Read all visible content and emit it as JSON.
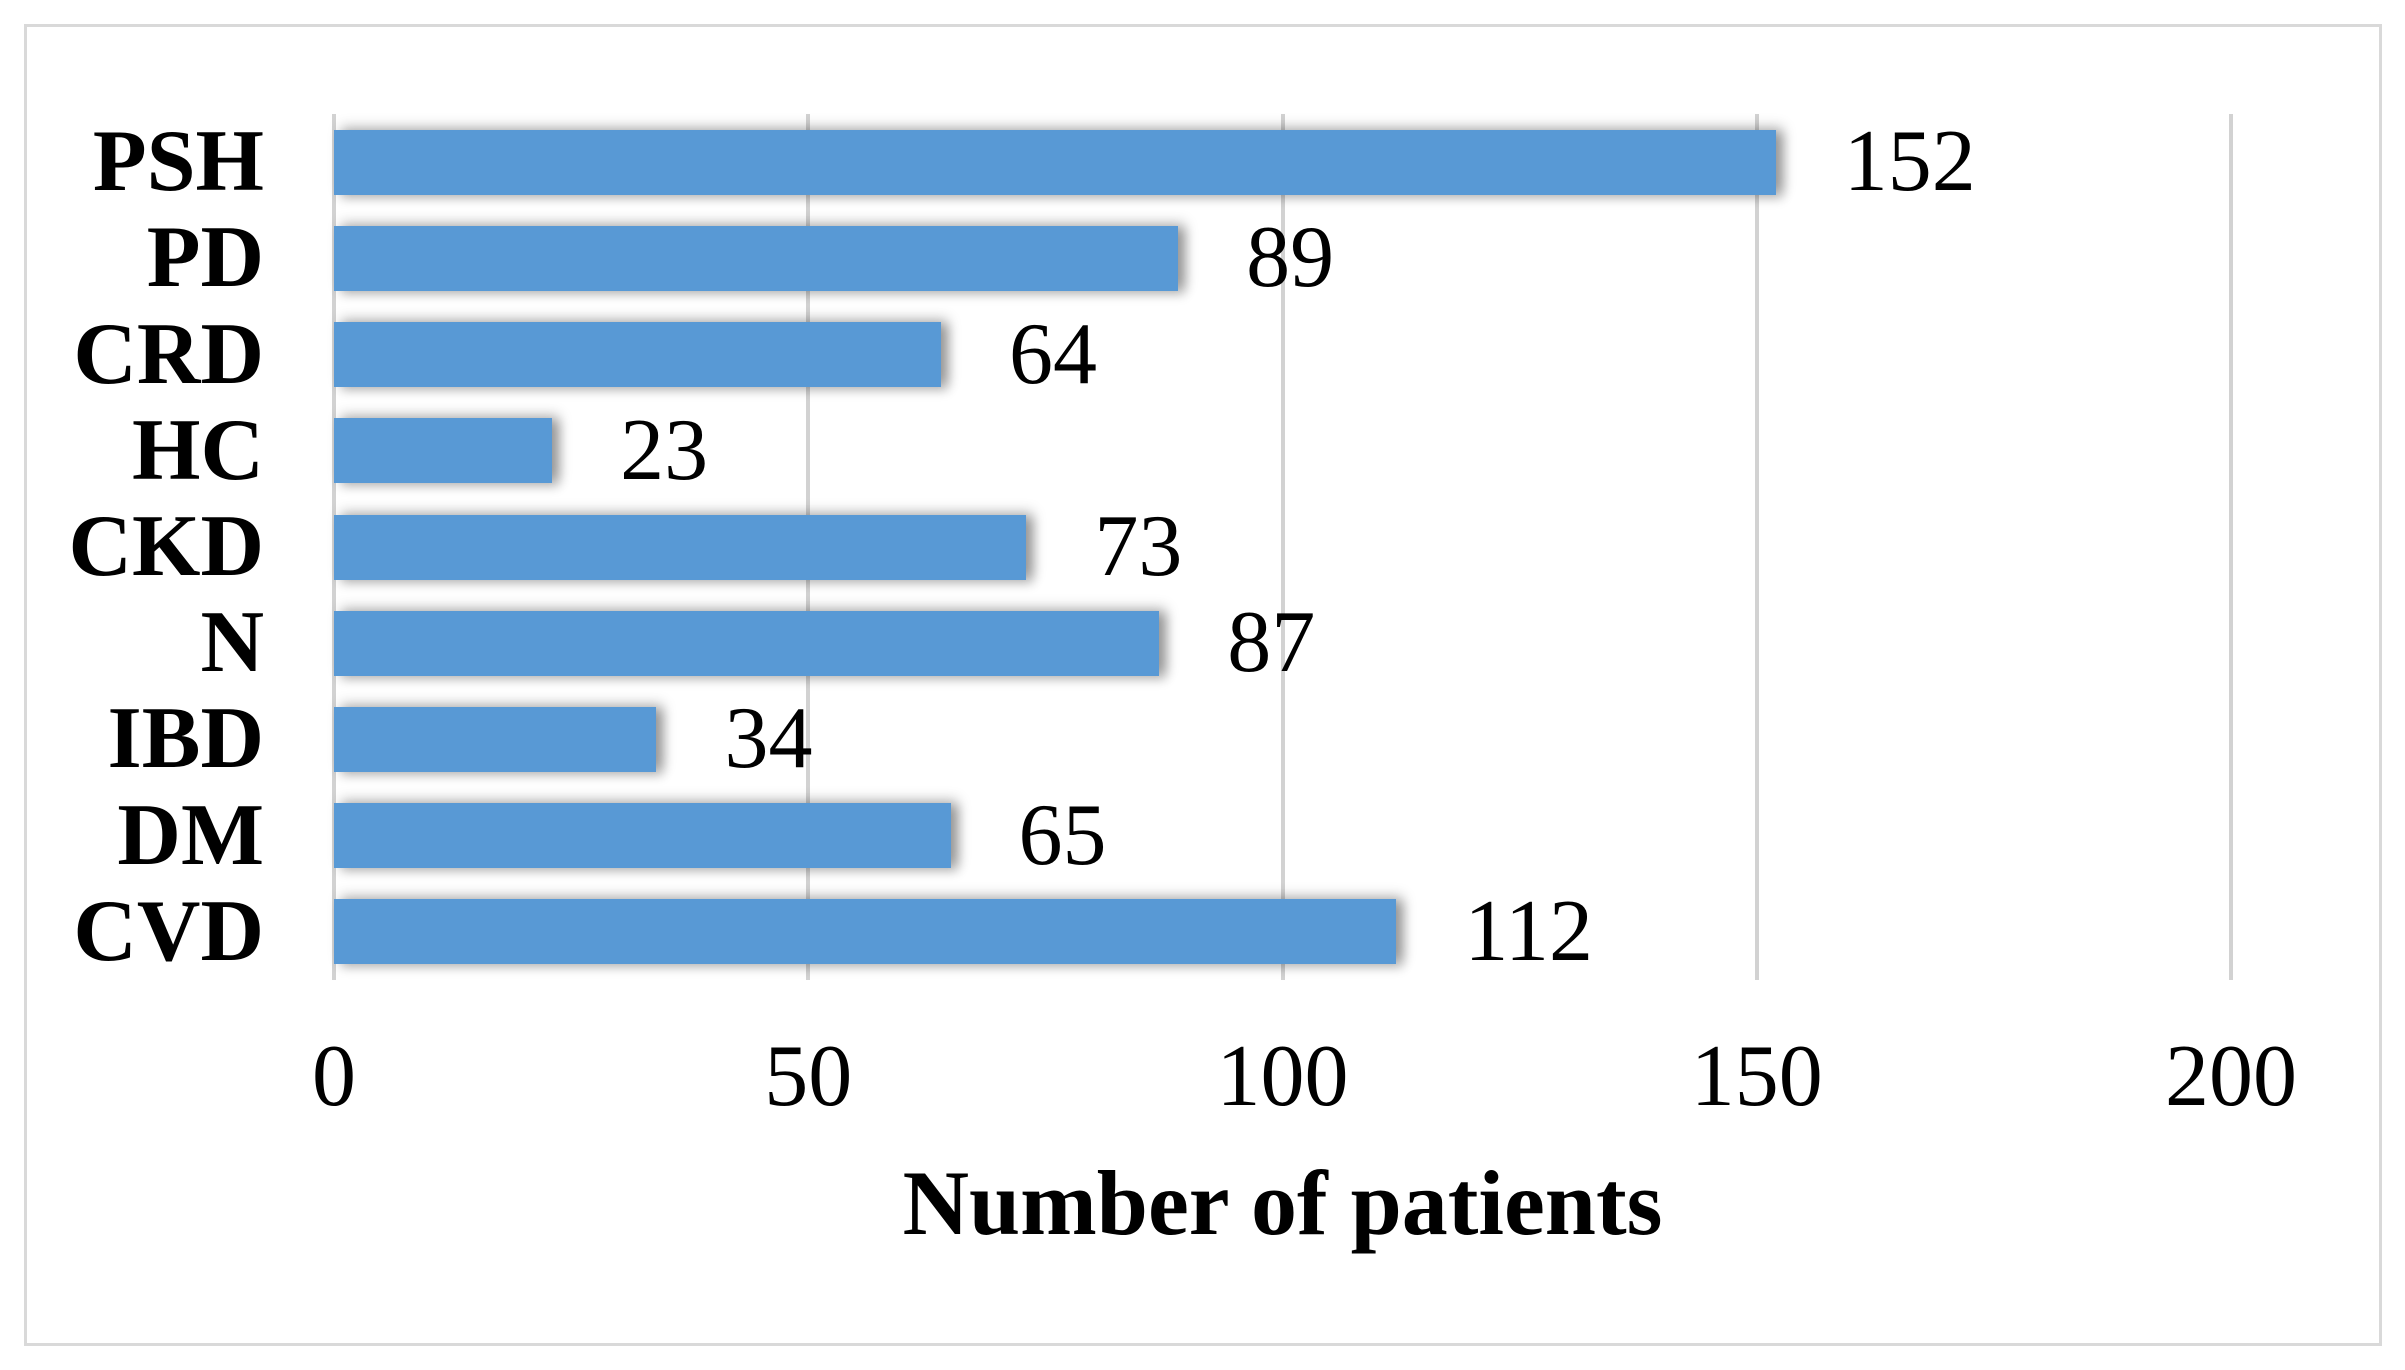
{
  "figure": {
    "background_color": "#ffffff",
    "border_color": "#d9d9d9",
    "bar_color": "#5899d5",
    "gridline_color": "#d2d2d2",
    "text_color": "#000000"
  },
  "chart_data": {
    "type": "bar",
    "orientation": "horizontal",
    "title": "",
    "xlabel": "Number of patients",
    "ylabel": "",
    "categories": [
      "PSH",
      "PD",
      "CRD",
      "HC",
      "CKD",
      "N",
      "IBD",
      "DM",
      "CVD"
    ],
    "values": [
      152,
      89,
      64,
      23,
      73,
      87,
      34,
      65,
      112
    ],
    "data_labels": [
      "152",
      "89",
      "64",
      "23",
      "73",
      "87",
      "34",
      "65",
      "112"
    ],
    "xlim": [
      0,
      200
    ],
    "xticks": [
      0,
      50,
      100,
      150,
      200
    ],
    "xtick_labels": [
      "0",
      "50",
      "100",
      "150",
      "200"
    ],
    "grid": "vertical-gridlines-on",
    "legend": "none",
    "data_label_position": "outside-end"
  }
}
